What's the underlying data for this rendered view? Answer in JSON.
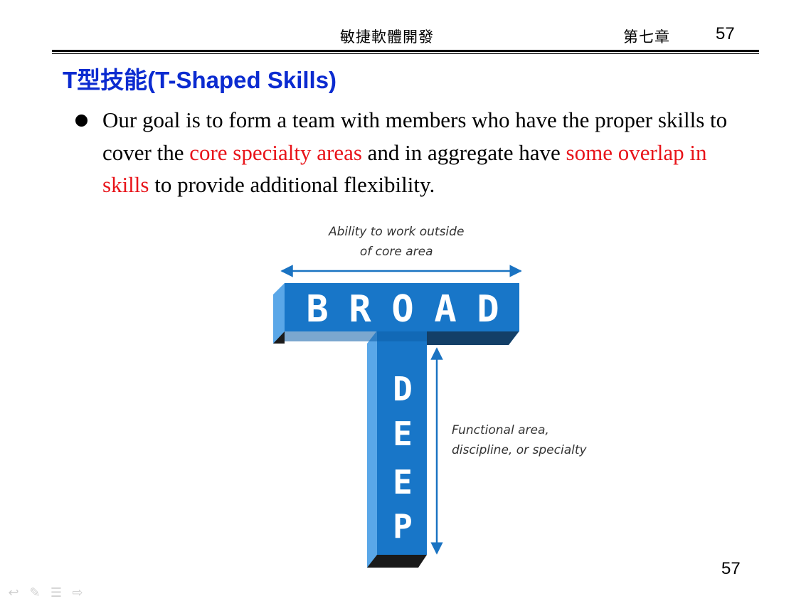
{
  "header": {
    "course": "敏捷軟體開發",
    "chapter": "第七章",
    "page": "57"
  },
  "title": "T型技能(T-Shaped Skills)",
  "bullet": {
    "p1": "Our goal is to form a team with members who have the proper skills to cover the ",
    "h1": "core specialty areas",
    "p2": " and in aggregate have ",
    "h2": "some overlap in skills",
    "p3": " to provide additional flexibility."
  },
  "figure": {
    "top_caption_line1": "Ability to work outside",
    "top_caption_line2": "of core area",
    "broad_letters": [
      "B",
      "R",
      "O",
      "A",
      "D"
    ],
    "deep_letters": [
      "D",
      "E",
      "E",
      "P"
    ],
    "side_caption_line1": "Functional area,",
    "side_caption_line2": "discipline, or specialty"
  },
  "footer": {
    "page": "57"
  },
  "nav_icons": [
    "back-arrow-icon",
    "pen-icon",
    "menu-icon",
    "forward-arrow-icon"
  ],
  "colors": {
    "title": "#0b2bd0",
    "highlight": "#e8141a",
    "t_front": "#1876c8",
    "t_side": "#5aa7e8",
    "t_shadow": "#1a1a1a",
    "arrow": "#1a73c2"
  }
}
